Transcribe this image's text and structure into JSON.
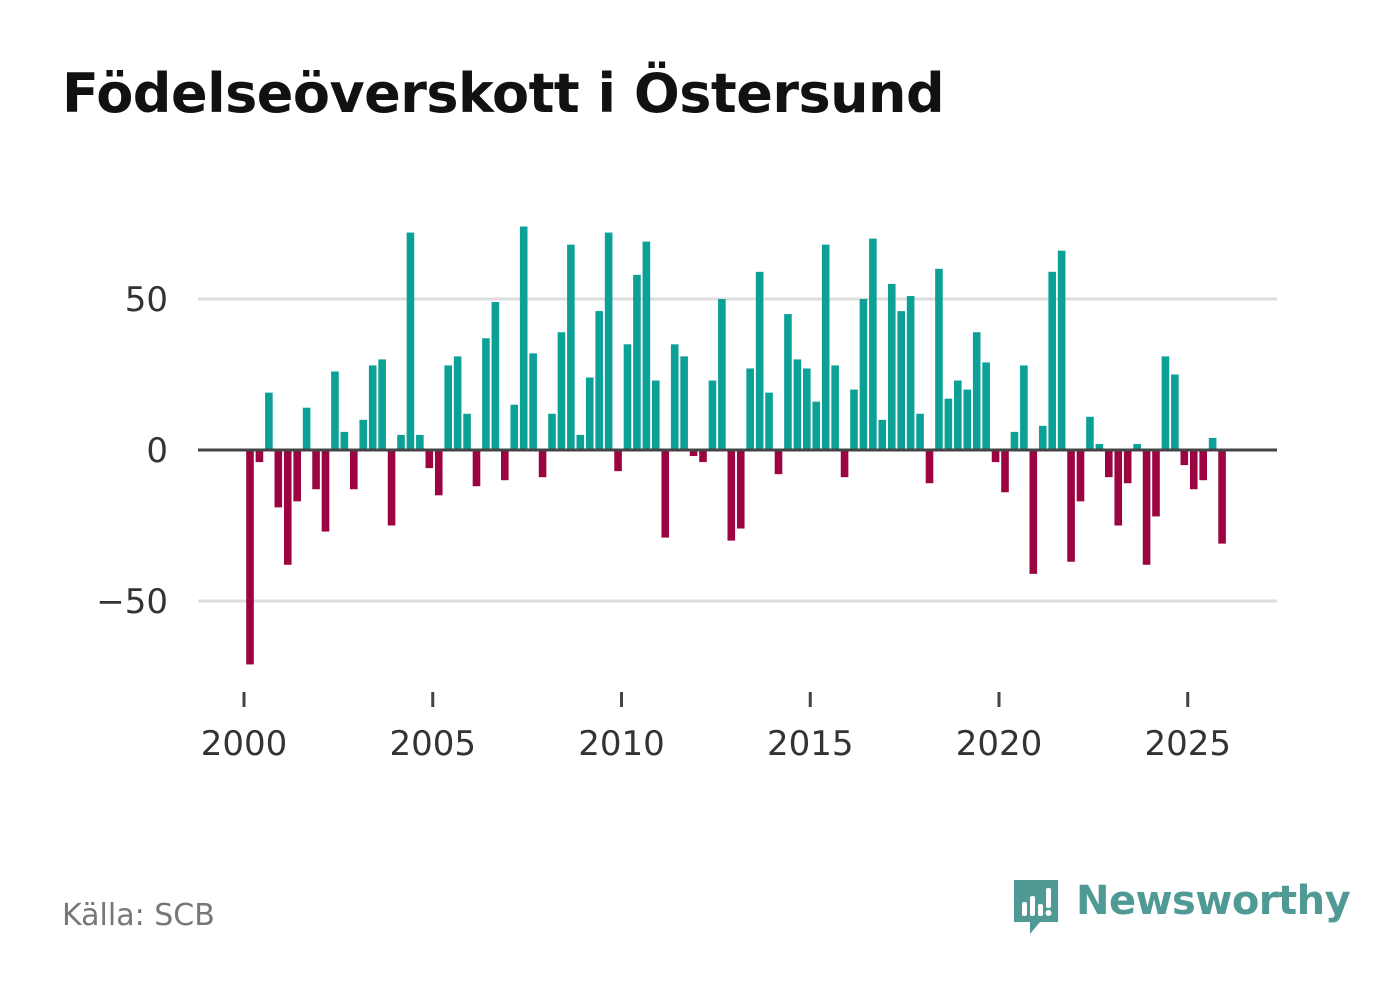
{
  "title": "Födelseöverskott i Östersund",
  "source": "Källa: SCB",
  "brand": {
    "name": "Newsworthy",
    "icon": "newsworthy-logo-icon",
    "color": "#4f9a94"
  },
  "colors": {
    "positive": "#0ca196",
    "negative": "#9b0341",
    "grid": "#dddddd",
    "zero_line": "#444444",
    "text": "#333333"
  },
  "chart_data": {
    "type": "bar",
    "title": "Födelseöverskott i Östersund",
    "xlabel": "",
    "ylabel": "",
    "ylim": [
      -80,
      80
    ],
    "xlim": [
      1998.5,
      2027.2
    ],
    "x_ticks": [
      2000,
      2005,
      2010,
      2015,
      2020,
      2025
    ],
    "x_tick_labels": [
      "2000",
      "2005",
      "2010",
      "2015",
      "2020",
      "2025"
    ],
    "y_ticks": [
      -50,
      0,
      50
    ],
    "y_tick_labels": [
      "−50",
      "0",
      "50"
    ],
    "frequency": "quarterly",
    "start": 2000.0,
    "step": 0.25,
    "values": [
      -71,
      -4,
      19,
      -19,
      -38,
      -17,
      14,
      -13,
      -27,
      26,
      6,
      -13,
      10,
      28,
      30,
      -25,
      5,
      72,
      5,
      -6,
      -15,
      28,
      31,
      12,
      -12,
      37,
      49,
      -10,
      15,
      74,
      32,
      -9,
      12,
      39,
      68,
      5,
      24,
      46,
      72,
      -7,
      35,
      58,
      69,
      23,
      -29,
      35,
      31,
      -2,
      -4,
      23,
      50,
      -30,
      -26,
      27,
      59,
      19,
      -8,
      45,
      30,
      27,
      16,
      68,
      28,
      -9,
      20,
      50,
      70,
      10,
      55,
      46,
      51,
      12,
      -11,
      60,
      17,
      23,
      20,
      39,
      29,
      -4,
      -14,
      6,
      28,
      -41,
      8,
      59,
      66,
      -37,
      -17,
      11,
      2,
      -9,
      -25,
      -11,
      2,
      -38,
      -22,
      31,
      25,
      -5,
      -13,
      -10,
      4,
      -31
    ]
  }
}
